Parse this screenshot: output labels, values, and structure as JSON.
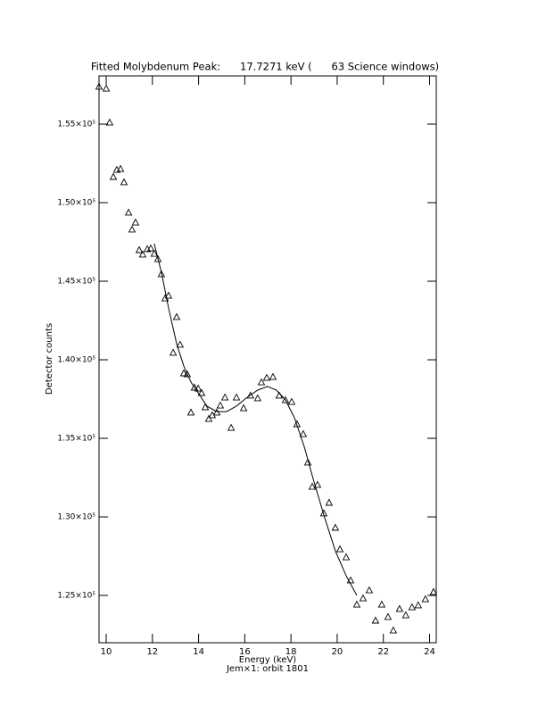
{
  "chart_data": {
    "type": "scatter",
    "title": "Fitted Molybdenum Peak:      17.7271 keV (      63 Science windows)",
    "x_label": "Energy (keV)",
    "subtitle": "Jem×1: orbit 1801",
    "y_label": "Detector counts",
    "xlim": [
      9.69,
      24.29
    ],
    "xticks": [
      10,
      12,
      14,
      16,
      18,
      20,
      22,
      24
    ],
    "ylim": [
      121990,
      158070
    ],
    "yticks": [
      {
        "value": 125000,
        "label": "1.25×10⁵"
      },
      {
        "value": 130000,
        "label": "1.30×10⁵"
      },
      {
        "value": 135000,
        "label": "1.35×10⁵"
      },
      {
        "value": 140000,
        "label": "1.40×10⁵"
      },
      {
        "value": 145000,
        "label": "1.45×10⁵"
      },
      {
        "value": 150000,
        "label": "1.50×10⁵"
      },
      {
        "value": 155000,
        "label": "1.55×10⁵"
      }
    ],
    "series": [
      {
        "type": "scatter",
        "color": "#000000",
        "x": [
          9.69,
          10.0,
          10.15,
          10.31,
          10.46,
          10.62,
          10.77,
          10.97,
          11.12,
          11.27,
          11.43,
          11.58,
          11.78,
          11.93,
          12.08,
          12.24,
          12.39,
          12.55,
          12.7,
          12.9,
          13.05,
          13.2,
          13.36,
          13.51,
          13.67,
          13.82,
          13.98,
          14.13,
          14.29,
          14.44,
          14.59,
          14.79,
          14.94,
          15.14,
          15.41,
          15.64,
          15.95,
          16.25,
          16.56,
          16.72,
          16.95,
          17.22,
          17.49,
          17.76,
          18.03,
          18.26,
          18.53,
          18.73,
          18.92,
          19.15,
          19.42,
          19.65,
          19.92,
          20.12,
          20.39,
          20.58,
          20.85,
          21.12,
          21.39,
          21.66,
          21.93,
          22.2,
          22.43,
          22.7,
          22.97,
          23.24,
          23.51,
          23.82,
          24.17
        ],
        "values": [
          157390,
          157270,
          155110,
          151650,
          152100,
          152160,
          151310,
          149380,
          148300,
          148750,
          146990,
          146710,
          147050,
          147100,
          146760,
          146420,
          145460,
          143920,
          144090,
          140460,
          142730,
          140970,
          139150,
          139090,
          136650,
          138240,
          138180,
          137900,
          136990,
          136250,
          136480,
          136650,
          137100,
          137610,
          135680,
          137610,
          136930,
          137730,
          137560,
          138580,
          138860,
          138920,
          137730,
          137440,
          137330,
          135910,
          135280,
          133470,
          131930,
          132050,
          130230,
          130910,
          129320,
          127950,
          127440,
          125970,
          124430,
          124830,
          125340,
          123410,
          124430,
          123640,
          122780,
          124150,
          123750,
          124260,
          124380,
          124770,
          125230
        ]
      },
      {
        "type": "line",
        "color": "#000000",
        "x": [
          12.08,
          12.39,
          12.7,
          13.05,
          13.36,
          13.67,
          13.98,
          14.36,
          14.79,
          15.21,
          15.64,
          16.06,
          16.56,
          16.99,
          17.37,
          17.76,
          18.15,
          18.57,
          19.0,
          19.46,
          19.92,
          20.39,
          20.85
        ],
        "values": [
          147390,
          145570,
          143300,
          141020,
          139600,
          138580,
          137900,
          137050,
          136700,
          136700,
          137050,
          137560,
          138070,
          138300,
          138070,
          137440,
          136310,
          134490,
          132220,
          129940,
          127840,
          126250,
          125000
        ]
      }
    ]
  }
}
